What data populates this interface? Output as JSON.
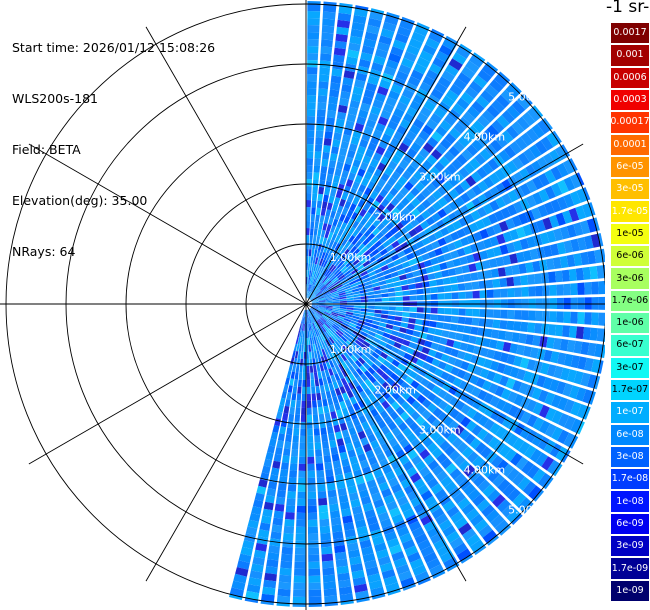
{
  "header": {
    "lines": [
      "Start time: 2026/01/12 15:08:26",
      "WLS200s-181",
      "Field: BETA",
      "Elevation(deg): 35.00",
      "NRays: 64"
    ]
  },
  "colorbar": {
    "title": "-1 sr-",
    "levels": [
      {
        "label": "0.0017",
        "color": "#7f0000"
      },
      {
        "label": "0.001",
        "color": "#a30000"
      },
      {
        "label": "0.0006",
        "color": "#c80000"
      },
      {
        "label": "0.0003",
        "color": "#f00000"
      },
      {
        "label": "0.00017",
        "color": "#ff3300"
      },
      {
        "label": "0.0001",
        "color": "#ff6a00"
      },
      {
        "label": "6e-05",
        "color": "#ff9400"
      },
      {
        "label": "3e-05",
        "color": "#ffbf00"
      },
      {
        "label": "1.7e-05",
        "color": "#ffe600"
      },
      {
        "label": "1e-05",
        "color": "#f4ff10"
      },
      {
        "label": "6e-06",
        "color": "#cfff38"
      },
      {
        "label": "3e-06",
        "color": "#a8ff5f"
      },
      {
        "label": "1.7e-06",
        "color": "#84ff83"
      },
      {
        "label": "1e-06",
        "color": "#5fffa8"
      },
      {
        "label": "6e-07",
        "color": "#38ffcf"
      },
      {
        "label": "3e-07",
        "color": "#10f8f4"
      },
      {
        "label": "1.7e-07",
        "color": "#00d4ff"
      },
      {
        "label": "1e-07",
        "color": "#00adff"
      },
      {
        "label": "6e-08",
        "color": "#0088ff"
      },
      {
        "label": "3e-08",
        "color": "#0062ff"
      },
      {
        "label": "1.7e-08",
        "color": "#003cff"
      },
      {
        "label": "1e-08",
        "color": "#0014ff"
      },
      {
        "label": "6e-09",
        "color": "#0000f1"
      },
      {
        "label": "3e-09",
        "color": "#0000c4"
      },
      {
        "label": "1.7e-09",
        "color": "#000096"
      },
      {
        "label": "1e-09",
        "color": "#00006d"
      }
    ]
  },
  "chart_data": {
    "type": "heatmap",
    "projection": "polar-ppi",
    "title": "",
    "field": "BETA",
    "nrays": 64,
    "elevation_deg": 35.0,
    "range_rings_km": [
      1,
      2,
      3,
      4,
      5
    ],
    "range_labels": [
      "1.00km",
      "2.00km",
      "3.00km",
      "4.00km",
      "5.00km"
    ],
    "max_range_km": 5.0,
    "radial_spokes_deg": [
      0,
      30,
      60,
      90,
      120,
      150,
      180,
      210,
      240,
      270,
      300,
      330
    ],
    "azimuth_start_deg": 0,
    "azimuth_end_deg": 195,
    "dominant_value_range": [
      "1e-08",
      "1e-07"
    ],
    "grid": true
  }
}
